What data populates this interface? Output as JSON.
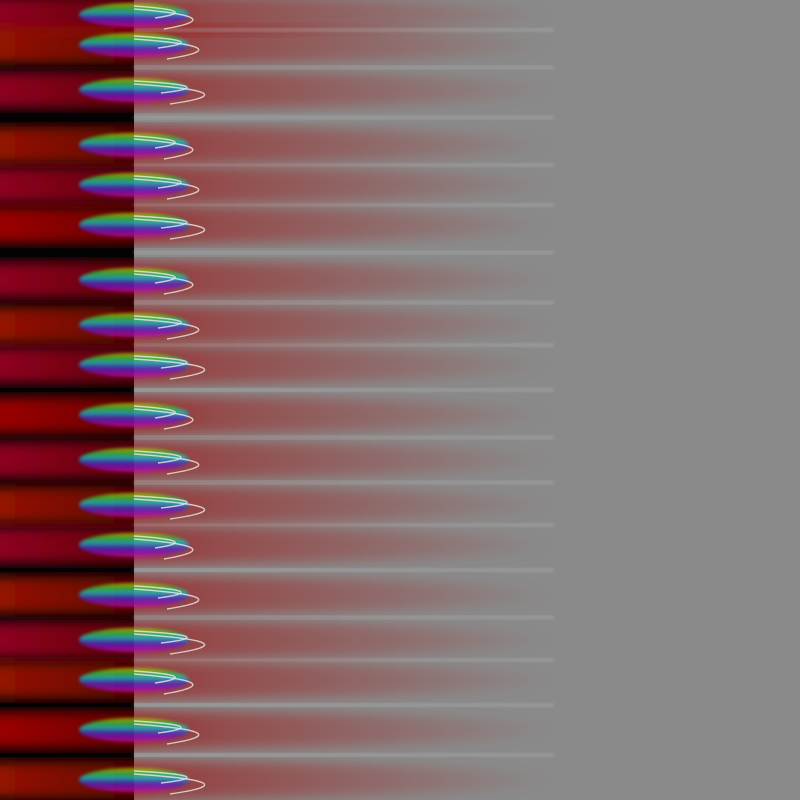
{
  "image": {
    "description_colors": {
      "background_dark": "#030303",
      "far_field": "#8a8a8a",
      "band_core": "#a00000",
      "band_magenta": "#b0106a",
      "band_orange": "#c06000",
      "accent_yellow": "#d0d000",
      "accent_green": "#20d020",
      "accent_cyan": "#10d0d0",
      "accent_blue": "#3030d0",
      "accent_purple": "#8010c0",
      "contour_line": "#e8e8e8"
    },
    "bands": [
      {
        "c": 15,
        "tint": "magenta"
      },
      {
        "c": 45,
        "tint": "orange"
      },
      {
        "c": 90,
        "tint": "magenta"
      },
      {
        "c": 145,
        "tint": "orange"
      },
      {
        "c": 185,
        "tint": "magenta"
      },
      {
        "c": 225,
        "tint": "red"
      },
      {
        "c": 280,
        "tint": "magenta"
      },
      {
        "c": 325,
        "tint": "orange"
      },
      {
        "c": 365,
        "tint": "magenta"
      },
      {
        "c": 415,
        "tint": "red"
      },
      {
        "c": 460,
        "tint": "magenta"
      },
      {
        "c": 505,
        "tint": "orange"
      },
      {
        "c": 545,
        "tint": "magenta"
      },
      {
        "c": 595,
        "tint": "orange"
      },
      {
        "c": 640,
        "tint": "magenta"
      },
      {
        "c": 680,
        "tint": "orange"
      },
      {
        "c": 730,
        "tint": "red"
      },
      {
        "c": 780,
        "tint": "orange"
      }
    ]
  }
}
